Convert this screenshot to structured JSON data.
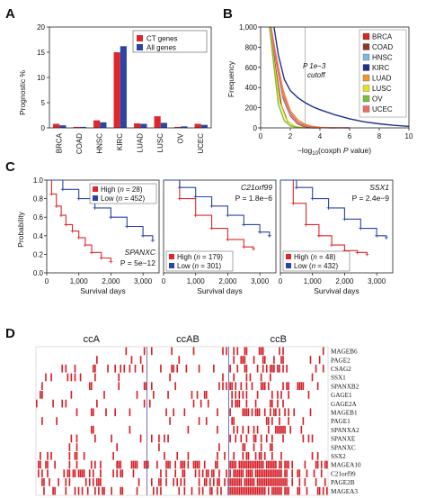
{
  "panels": {
    "A": {
      "label": "A",
      "chart_data": {
        "type": "bar",
        "ylabel": "Prognostic %",
        "ylim": [
          0,
          20
        ],
        "yticks": [
          "0",
          "5",
          "10",
          "15",
          "20"
        ],
        "categories": [
          "BRCA",
          "COAD",
          "HNSC",
          "KIRC",
          "LUAD",
          "LUSC",
          "OV",
          "UCEC"
        ],
        "series": [
          {
            "name": "CT genes",
            "color": "#e0262b",
            "values": [
              0.8,
              0.2,
              1.5,
              15.0,
              0.9,
              2.3,
              0.2,
              0.8
            ]
          },
          {
            "name": "All genes",
            "color": "#2a44a8",
            "values": [
              0.5,
              0.2,
              1.1,
              16.2,
              0.8,
              1.0,
              0.3,
              0.6
            ]
          }
        ],
        "legend": "top-right"
      }
    },
    "B": {
      "label": "B",
      "chart_data": {
        "type": "line",
        "ylabel": "Frequency",
        "xlabel_parts": [
          "−log",
          "10",
          "(coxph ",
          "P",
          " value)"
        ],
        "xlim": [
          0,
          10
        ],
        "ylim": [
          0,
          1000
        ],
        "xticks": [
          "0",
          "2",
          "4",
          "6",
          "8",
          "10"
        ],
        "yticks": [
          "0",
          "200",
          "400",
          "600",
          "800",
          "1,000"
        ],
        "cutoff_x": 3,
        "annotation": [
          "P 1e−3",
          "cutoff"
        ],
        "legend": "right",
        "series": [
          {
            "name": "BRCA",
            "color": "#d7261e",
            "x": [
              0.7,
              1,
              1.5,
              2,
              2.5,
              3,
              4,
              5,
              6
            ],
            "y": [
              1000,
              700,
              300,
              120,
              40,
              10,
              3,
              1,
              0
            ]
          },
          {
            "name": "COAD",
            "color": "#8b3a2a",
            "x": [
              0.6,
              1,
              1.4,
              1.8,
              2.2,
              2.6,
              3,
              4
            ],
            "y": [
              1000,
              600,
              220,
              70,
              20,
              6,
              2,
              0
            ]
          },
          {
            "name": "HNSC",
            "color": "#7fb8e0",
            "x": [
              0.7,
              1,
              1.5,
              2,
              2.5,
              3,
              3.5,
              4,
              5
            ],
            "y": [
              1000,
              720,
              320,
              130,
              50,
              20,
              8,
              3,
              0
            ]
          },
          {
            "name": "KIRC",
            "color": "#1f2f8c",
            "x": [
              0.9,
              1.2,
              1.6,
              2,
              2.5,
              3,
              3.5,
              4,
              5,
              6,
              7,
              8,
              9,
              10
            ],
            "y": [
              1000,
              720,
              480,
              370,
              300,
              250,
              210,
              180,
              130,
              90,
              60,
              40,
              25,
              15
            ]
          },
          {
            "name": "LUAD",
            "color": "#f0962a",
            "x": [
              0.7,
              1,
              1.5,
              2,
              2.5,
              3,
              3.5,
              4,
              5
            ],
            "y": [
              1000,
              750,
              380,
              170,
              80,
              35,
              15,
              6,
              1
            ]
          },
          {
            "name": "LUSC",
            "color": "#e7e021",
            "x": [
              0.6,
              0.9,
              1.3,
              1.7,
              2.1,
              2.5,
              3
            ],
            "y": [
              1000,
              650,
              250,
              90,
              30,
              10,
              2
            ]
          },
          {
            "name": "OV",
            "color": "#7cbf3a",
            "x": [
              0.6,
              0.9,
              1.2,
              1.6,
              2,
              2.5,
              3
            ],
            "y": [
              1000,
              600,
              230,
              70,
              20,
              5,
              1
            ]
          },
          {
            "name": "UCEC",
            "color": "#f06a60",
            "x": [
              0.7,
              1,
              1.5,
              2,
              2.5,
              3,
              3.5,
              4,
              5
            ],
            "y": [
              1000,
              730,
              340,
              150,
              60,
              25,
              10,
              4,
              0
            ]
          }
        ]
      }
    },
    "C": {
      "label": "C",
      "ylabel": "Probability",
      "xlabel": "Survival days",
      "yticks": [
        "0.0",
        "0.2",
        "0.4",
        "0.6",
        "0.8",
        "1.0"
      ],
      "xticks": [
        "0",
        "1,000",
        "2,000",
        "3,000"
      ],
      "charts": [
        {
          "gene": "SPANXC",
          "pvalue": "P = 5e−12",
          "legend_pos": "top",
          "chart_data": {
            "type": "line",
            "xlim": [
              0,
              3500
            ],
            "ylim": [
              0,
              1
            ],
            "series": [
              {
                "name": "High",
                "n": "28",
                "color": "#e0262b",
                "x": [
                  0,
                  150,
                  300,
                  450,
                  600,
                  800,
                  1000,
                  1200,
                  1400,
                  1700,
                  2000
                ],
                "y": [
                  1,
                  0.85,
                  0.72,
                  0.62,
                  0.52,
                  0.45,
                  0.38,
                  0.3,
                  0.22,
                  0.16,
                  0.12
                ]
              },
              {
                "name": "Low",
                "n": "452",
                "color": "#2a44a8",
                "x": [
                  0,
                  500,
                  1000,
                  1500,
                  2000,
                  2500,
                  3000,
                  3300
                ],
                "y": [
                  1,
                  0.9,
                  0.8,
                  0.7,
                  0.6,
                  0.5,
                  0.4,
                  0.35
                ]
              }
            ]
          }
        },
        {
          "gene": "C21orf99",
          "pvalue": "P = 1.8e−6",
          "legend_pos": "bottom",
          "chart_data": {
            "type": "line",
            "xlim": [
              0,
              3500
            ],
            "ylim": [
              0,
              1
            ],
            "series": [
              {
                "name": "High",
                "n": "179",
                "color": "#e0262b",
                "x": [
                  0,
                  500,
                  1000,
                  1500,
                  2000,
                  2500,
                  2800
                ],
                "y": [
                  1,
                  0.8,
                  0.62,
                  0.48,
                  0.36,
                  0.28,
                  0.26
                ]
              },
              {
                "name": "Low",
                "n": "301",
                "color": "#2a44a8",
                "x": [
                  0,
                  500,
                  1000,
                  1500,
                  2000,
                  2500,
                  3000,
                  3300
                ],
                "y": [
                  1,
                  0.92,
                  0.82,
                  0.72,
                  0.62,
                  0.52,
                  0.44,
                  0.4
                ]
              }
            ]
          }
        },
        {
          "gene": "SSX1",
          "pvalue": "P = 2.4e−9",
          "legend_pos": "bottom",
          "chart_data": {
            "type": "line",
            "xlim": [
              0,
              3500
            ],
            "ylim": [
              0,
              1
            ],
            "series": [
              {
                "name": "High",
                "n": "48",
                "color": "#e0262b",
                "x": [
                  0,
                  400,
                  800,
                  1200,
                  1600,
                  2000,
                  2400,
                  2700
                ],
                "y": [
                  1,
                  0.75,
                  0.52,
                  0.4,
                  0.3,
                  0.24,
                  0.22,
                  0.2
                ]
              },
              {
                "name": "Low",
                "n": "432",
                "color": "#2a44a8",
                "x": [
                  0,
                  500,
                  1000,
                  1500,
                  2000,
                  2500,
                  3000,
                  3300
                ],
                "y": [
                  1,
                  0.92,
                  0.8,
                  0.7,
                  0.58,
                  0.48,
                  0.4,
                  0.38
                ]
              }
            ]
          }
        }
      ]
    },
    "D": {
      "label": "D",
      "chart_data": {
        "type": "heatmap",
        "clusters": [
          "ccA",
          "ccAB",
          "ccB"
        ],
        "cluster_bounds": [
          0,
          0.38,
          0.66,
          1.0
        ],
        "rows": [
          "MAGEB6",
          "PAGE2",
          "CSAG2",
          "SSX1",
          "SPANXB2",
          "GAGE1",
          "GAGE2A",
          "MAGEB1",
          "PAGE1",
          "SPANXA2",
          "SPANXE",
          "SPANXC",
          "SSX2",
          "MAGEA10",
          "C21orf99",
          "PAGE2B",
          "MAGEA3"
        ],
        "row_density": [
          0.1,
          0.08,
          0.12,
          0.08,
          0.1,
          0.08,
          0.08,
          0.07,
          0.07,
          0.07,
          0.07,
          0.07,
          0.1,
          0.35,
          0.3,
          0.3,
          0.35
        ],
        "color": "#d51f27"
      }
    }
  }
}
